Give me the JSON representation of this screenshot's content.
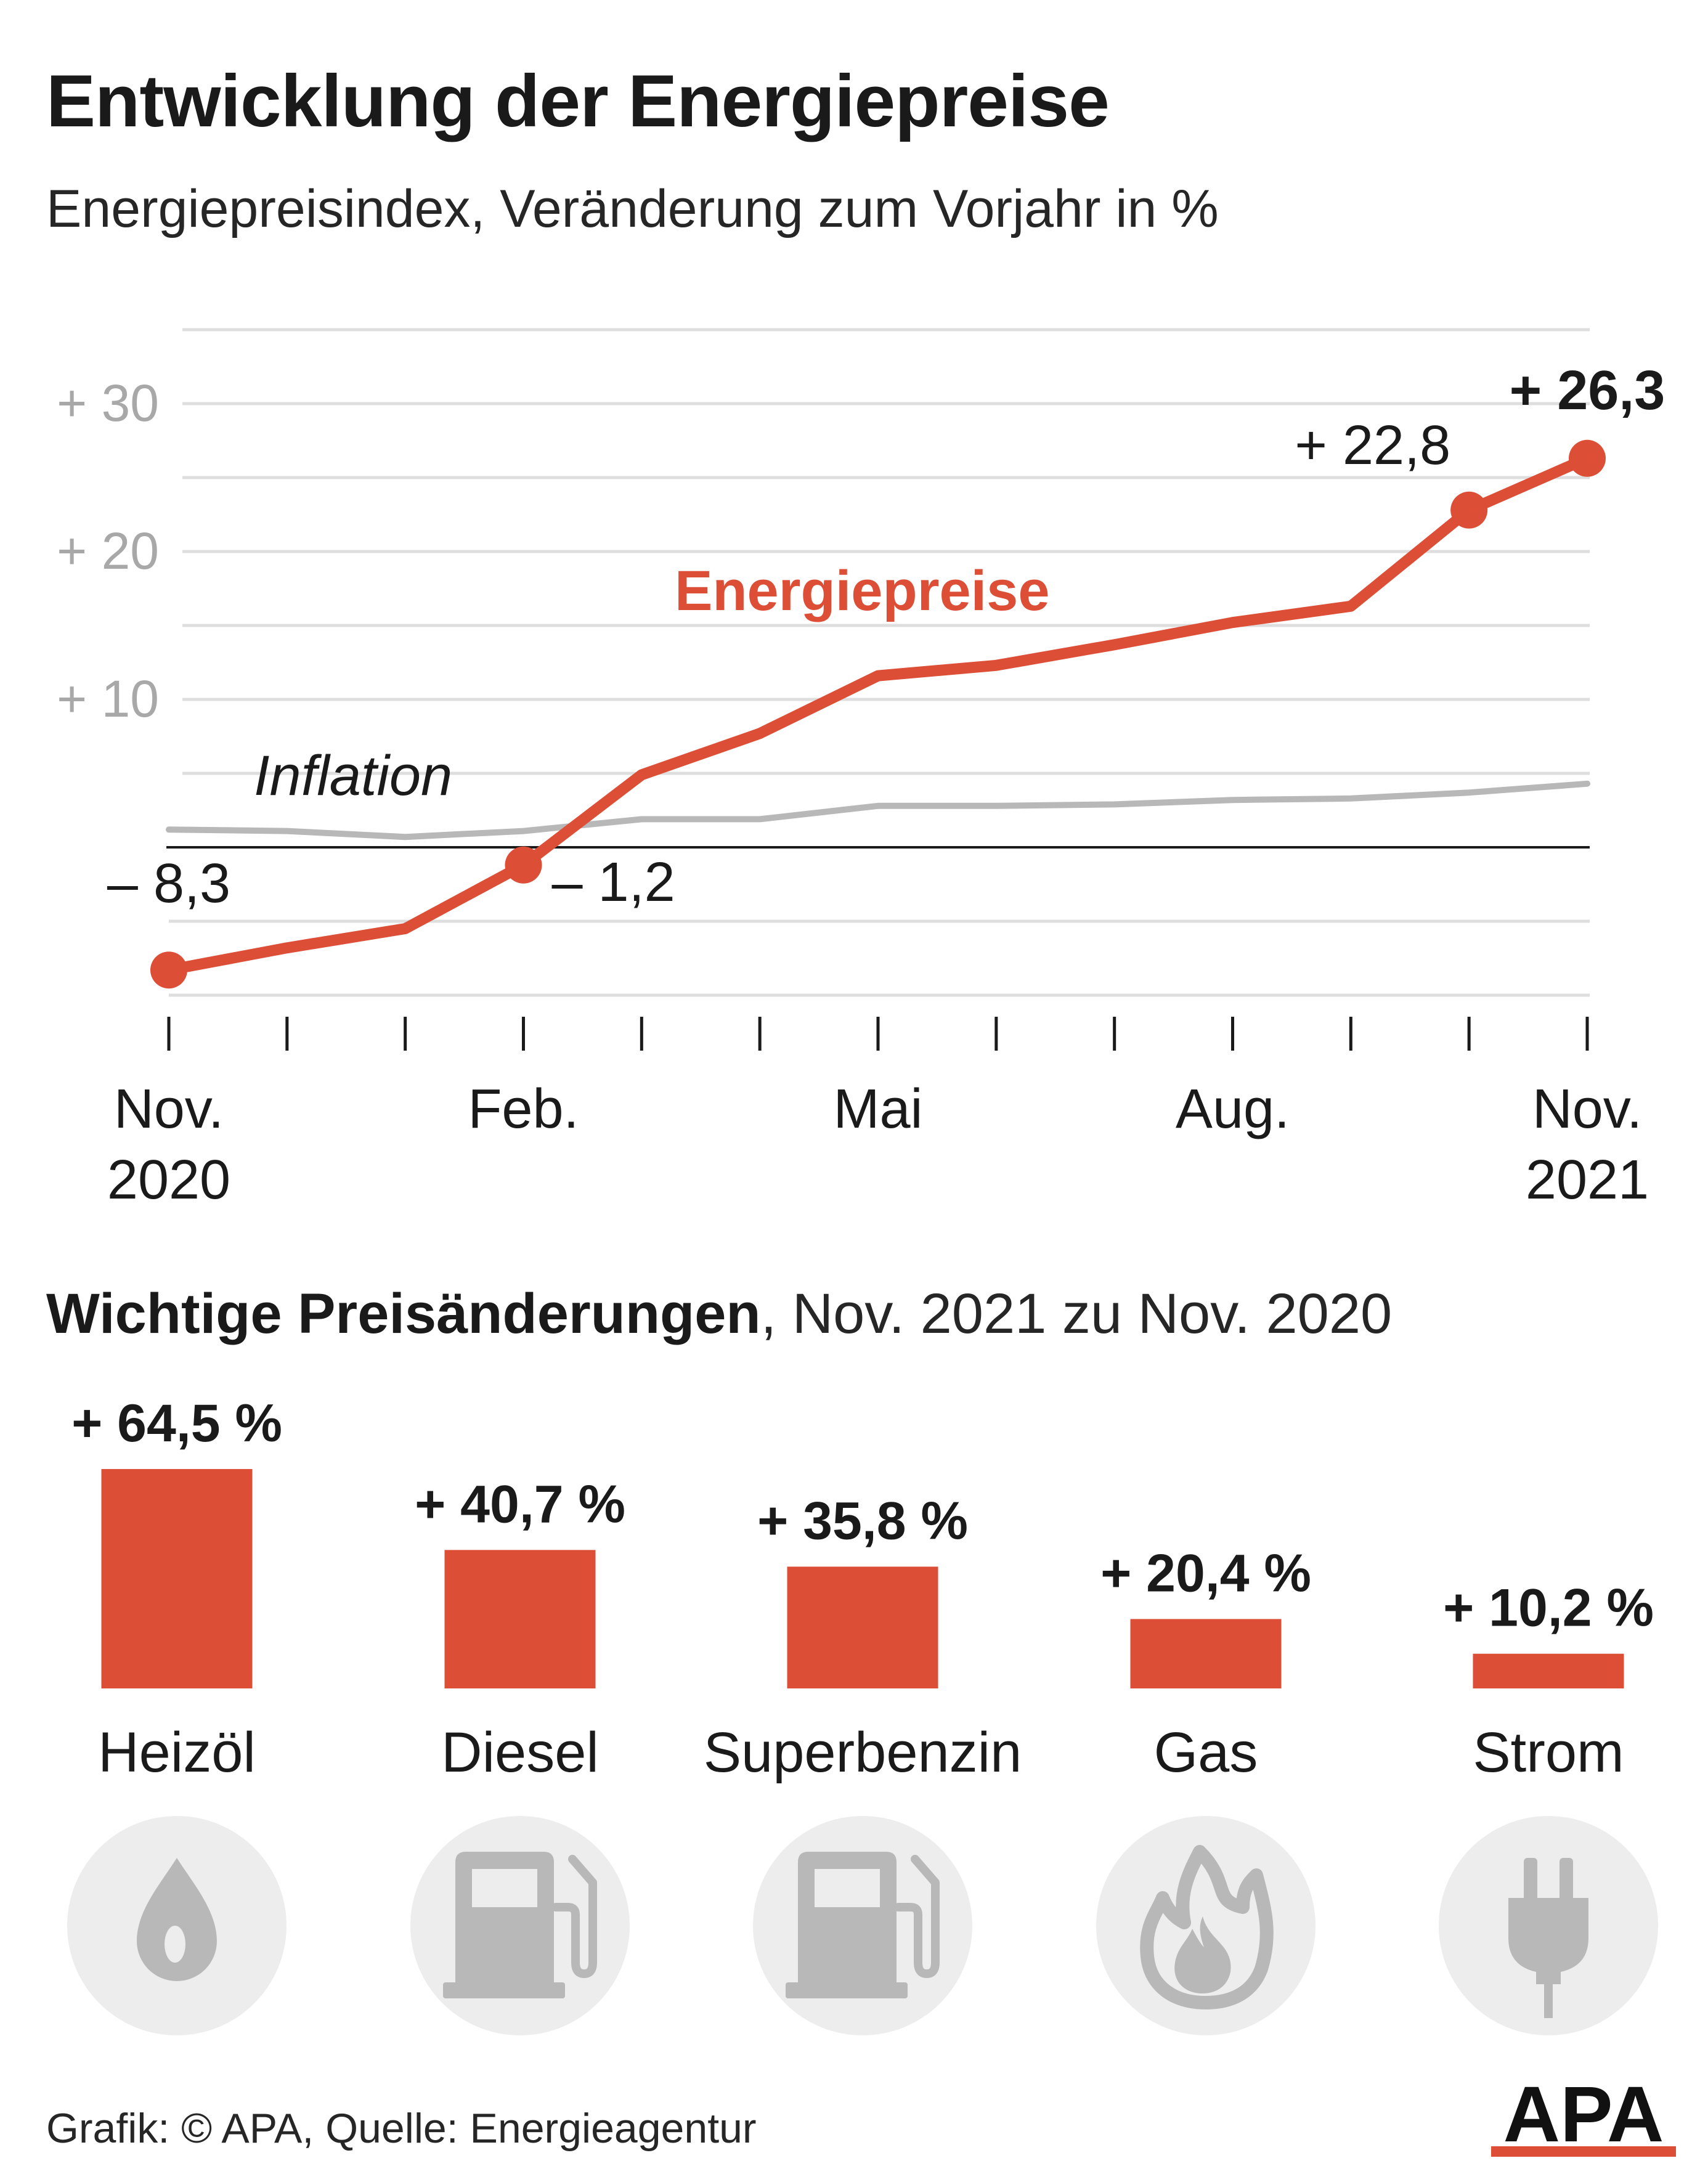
{
  "title": "Entwicklung der Energiepreise",
  "subtitle": "Energiepreisindex, Veränderung zum Vorjahr in %",
  "colors": {
    "energy": "#dd4e37",
    "inflation": "#b8b8b8",
    "grid": "#dedede",
    "axis_label": "#a8a8a8",
    "icon_bg": "#ededed",
    "icon": "#b8b8b8"
  },
  "chart_data": [
    {
      "type": "line",
      "x": [
        "Nov. 2020",
        "Dez. 2020",
        "Jän. 2021",
        "Feb. 2021",
        "Mär. 2021",
        "Apr. 2021",
        "Mai 2021",
        "Jun. 2021",
        "Jul. 2021",
        "Aug. 2021",
        "Sep. 2021",
        "Okt. 2021",
        "Nov. 2021"
      ],
      "x_tick_labels": [
        {
          "index": 0,
          "lines": [
            "Nov.",
            "2020"
          ]
        },
        {
          "index": 3,
          "lines": [
            "Feb."
          ]
        },
        {
          "index": 6,
          "lines": [
            "Mai"
          ]
        },
        {
          "index": 9,
          "lines": [
            "Aug."
          ]
        },
        {
          "index": 12,
          "lines": [
            "Nov.",
            "2021"
          ]
        }
      ],
      "y_ticks": [
        10,
        20,
        30
      ],
      "y_tick_labels": [
        "+ 10",
        "+ 20",
        "+ 30"
      ],
      "ylim": [
        -10,
        35
      ],
      "grid": true,
      "series": [
        {
          "name": "Energiepreise",
          "color": "#dd4e37",
          "values": [
            -8.3,
            -6.8,
            -5.5,
            -1.2,
            4.9,
            7.7,
            11.6,
            12.3,
            13.7,
            15.2,
            16.3,
            22.8,
            26.3
          ]
        },
        {
          "name": "Inflation",
          "color": "#b8b8b8",
          "values": [
            1.2,
            1.1,
            0.7,
            1.1,
            1.9,
            1.9,
            2.8,
            2.8,
            2.9,
            3.2,
            3.3,
            3.7,
            4.3
          ]
        }
      ],
      "markers": [
        0,
        3,
        11,
        12
      ],
      "point_labels": [
        {
          "index": 0,
          "text": "– 8,3",
          "bold": false
        },
        {
          "index": 3,
          "text": "– 1,2",
          "bold": false
        },
        {
          "index": 11,
          "text": "+ 22,8",
          "bold": false
        },
        {
          "index": 12,
          "text": "+ 26,3",
          "bold": true
        }
      ]
    },
    {
      "type": "bar",
      "title": "Wichtige Preisänderungen",
      "title_suffix": ", Nov. 2021 zu Nov. 2020",
      "categories": [
        "Heizöl",
        "Diesel",
        "Superbenzin",
        "Gas",
        "Strom"
      ],
      "values": [
        64.5,
        40.7,
        35.8,
        20.4,
        10.2
      ],
      "value_labels": [
        "+ 64,5 %",
        "+ 40,7 %",
        "+ 35,8 %",
        "+ 20,4 %",
        "+ 10,2 %"
      ],
      "icons": [
        "drop-icon",
        "fuel-pump-icon",
        "fuel-pump-icon",
        "flame-icon",
        "plug-icon"
      ]
    }
  ],
  "source": "Grafik: © APA, Quelle: Energieagentur",
  "logo": "APA"
}
